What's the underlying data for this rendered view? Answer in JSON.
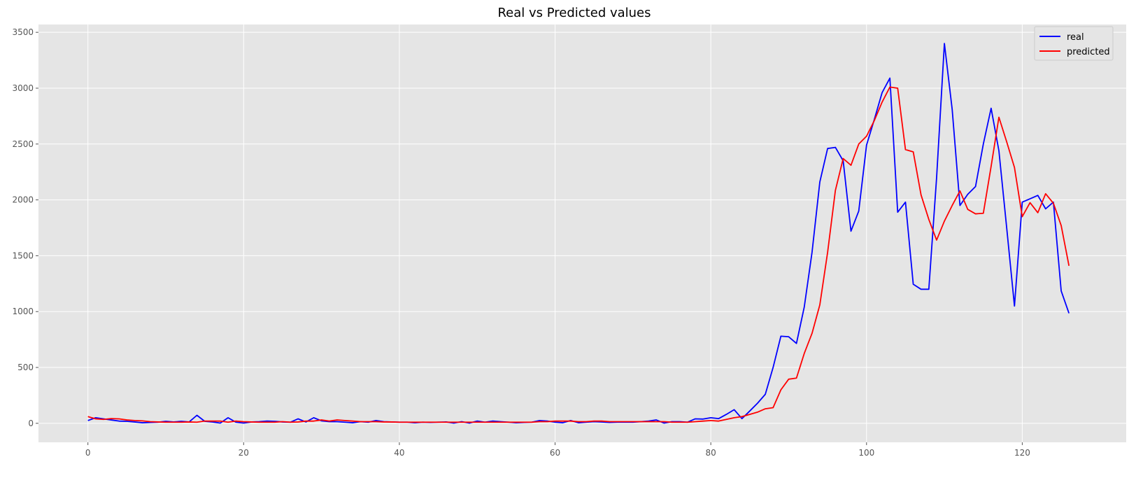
{
  "chart_data": {
    "type": "line",
    "title": "Real vs Predicted values",
    "xlabel": "",
    "ylabel": "",
    "xlim": [
      -6.35,
      133.35
    ],
    "ylim": [
      -170,
      3570
    ],
    "x_ticks": [
      0,
      20,
      40,
      60,
      80,
      100,
      120
    ],
    "y_ticks": [
      0,
      500,
      1000,
      1500,
      2000,
      2500,
      3000,
      3500
    ],
    "grid": true,
    "legend_position": "top-right",
    "background": "#e5e5e5",
    "grid_color": "#ffffff",
    "x_start": 0,
    "series": [
      {
        "name": "real",
        "color": "#0000ff",
        "values": [
          25,
          50,
          40,
          30,
          20,
          18,
          12,
          5,
          8,
          10,
          18,
          12,
          18,
          12,
          72,
          18,
          12,
          2,
          50,
          10,
          2,
          12,
          15,
          20,
          18,
          12,
          10,
          40,
          12,
          50,
          22,
          15,
          15,
          10,
          5,
          15,
          10,
          25,
          15,
          12,
          10,
          10,
          5,
          10,
          8,
          10,
          12,
          2,
          15,
          2,
          20,
          10,
          20,
          15,
          10,
          5,
          8,
          10,
          25,
          20,
          10,
          5,
          25,
          5,
          10,
          15,
          12,
          8,
          10,
          10,
          10,
          15,
          20,
          30,
          2,
          15,
          15,
          10,
          40,
          38,
          50,
          42,
          80,
          122,
          42,
          110,
          180,
          260,
          500,
          780,
          775,
          715,
          1040,
          1530,
          2160,
          2460,
          2470,
          2350,
          1720,
          1900,
          2490,
          2720,
          2960,
          3090,
          1890,
          1980,
          1245,
          1200,
          1200,
          2200,
          3400,
          2810,
          1950,
          2050,
          2120,
          2500,
          2820,
          2440,
          1750,
          1050,
          1980,
          2010,
          2040,
          1920,
          1980,
          1185,
          985
        ]
      },
      {
        "name": "predicted",
        "color": "#ff0000",
        "values": [
          60,
          40,
          35,
          42,
          40,
          30,
          25,
          22,
          15,
          12,
          10,
          10,
          10,
          12,
          10,
          20,
          20,
          20,
          10,
          20,
          15,
          12,
          10,
          10,
          10,
          15,
          10,
          12,
          20,
          20,
          30,
          20,
          30,
          25,
          20,
          15,
          15,
          15,
          12,
          12,
          10,
          10,
          10,
          10,
          10,
          10,
          10,
          10,
          10,
          10,
          10,
          10,
          10,
          10,
          10,
          10,
          10,
          10,
          15,
          15,
          20,
          20,
          20,
          15,
          15,
          20,
          20,
          15,
          15,
          15,
          15,
          15,
          15,
          15,
          15,
          10,
          10,
          10,
          15,
          20,
          25,
          20,
          35,
          50,
          60,
          80,
          100,
          130,
          140,
          300,
          395,
          405,
          625,
          805,
          1060,
          1530,
          2085,
          2370,
          2310,
          2500,
          2570,
          2710,
          2875,
          3010,
          3000,
          2450,
          2430,
          2045,
          1825,
          1640,
          1810,
          1950,
          2080,
          1915,
          1875,
          1880,
          2300,
          2740,
          2520,
          2290,
          1850,
          1975,
          1885,
          2055,
          1970,
          1770,
          1410
        ]
      }
    ]
  }
}
